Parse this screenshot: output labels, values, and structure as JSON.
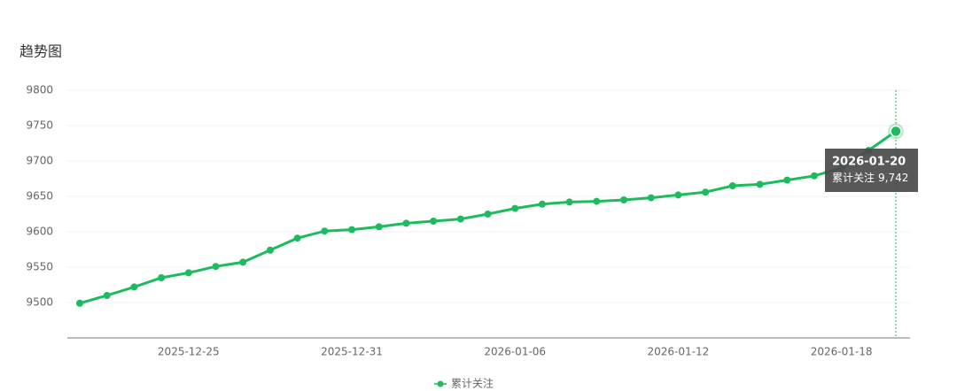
{
  "chart_data": {
    "type": "line",
    "title": "趋势图",
    "categories": [
      null,
      null,
      null,
      null,
      "2025-12-25",
      null,
      null,
      null,
      null,
      null,
      "2025-12-31",
      null,
      null,
      null,
      null,
      null,
      "2026-01-06",
      null,
      null,
      null,
      null,
      null,
      "2026-01-12",
      null,
      null,
      null,
      null,
      null,
      "2026-01-18",
      null,
      "2026-01-20"
    ],
    "series": [
      {
        "name": "累计关注",
        "color": "#1cbb5e",
        "values": [
          9499,
          9510,
          9522,
          9535,
          9542,
          9551,
          9557,
          9574,
          9591,
          9601,
          9603,
          9607,
          9612,
          9615,
          9618,
          9625,
          9633,
          9639,
          9642,
          9643,
          9645,
          9648,
          9652,
          9656,
          9665,
          9667,
          9673,
          9679,
          9690,
          9715,
          9742
        ],
        "value_labels": [
          null,
          null,
          null,
          null,
          null,
          null,
          null,
          null,
          null,
          null,
          null,
          null,
          null,
          null,
          null,
          null,
          null,
          null,
          null,
          null,
          null,
          null,
          null,
          null,
          null,
          null,
          null,
          null,
          null,
          null,
          "9,742"
        ]
      }
    ],
    "ylim": [
      9450,
      9800
    ],
    "yticks": [
      9500,
      9550,
      9600,
      9650,
      9700,
      9750,
      9800
    ],
    "grid": true
  }
}
